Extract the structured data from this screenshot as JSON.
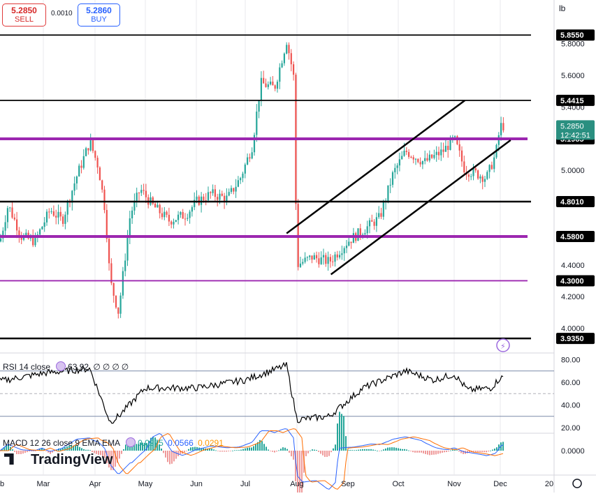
{
  "trade": {
    "sell_price": "5.2850",
    "sell_label": "SELL",
    "spread": "0.0010",
    "buy_price": "5.2860",
    "buy_label": "BUY"
  },
  "price_scale": {
    "units": "lb",
    "ticks": [
      "5.8000",
      "5.6000",
      "5.4000",
      "5.2000",
      "5.0000",
      "4.8000",
      "4.6000",
      "4.4000",
      "4.2000",
      "4.0000"
    ]
  },
  "levels": [
    {
      "value": "5.8550",
      "color": "#000000",
      "width": "thin"
    },
    {
      "value": "5.4415",
      "color": "#000000",
      "width": "thin"
    },
    {
      "value": "5.1985",
      "color": "#9c27b0",
      "width": "thick"
    },
    {
      "value": "4.8010",
      "color": "#000000",
      "width": "thick"
    },
    {
      "value": "4.5800",
      "color": "#9c27b0",
      "width": "thick"
    },
    {
      "value": "4.3000",
      "color": "#9c27b0",
      "width": "thin"
    },
    {
      "value": "3.9350",
      "color": "#000000",
      "width": "thick"
    }
  ],
  "last_price": {
    "value": "5.2850",
    "countdown": "12:42:51",
    "color": "#2a8f80"
  },
  "channel_lines": [
    {
      "from": [
        "Jul 25",
        4.6
      ],
      "to": [
        "Nov 8",
        5.4415
      ]
    },
    {
      "from": [
        "Aug 21",
        4.34
      ],
      "to": [
        "Dec 7",
        5.19
      ]
    }
  ],
  "time_axis": [
    "b",
    "Mar",
    "Apr",
    "May",
    "Jun",
    "Jul",
    "Aug",
    "Sep",
    "Oct",
    "Nov",
    "Dec",
    "20"
  ],
  "rsi": {
    "label": "RSI 14 close",
    "value": "63.92",
    "extra": [
      "∅",
      "∅",
      "∅",
      "∅"
    ],
    "ticks": [
      "80.00",
      "60.00",
      "40.00",
      "20.00"
    ],
    "bands": [
      70,
      50,
      30
    ]
  },
  "macd": {
    "label": "MACD 12 26 close 9 EMA EMA",
    "histogram": "0.0275",
    "macd": "0.0566",
    "signal": "0.0291",
    "ticks": [
      "0.0000"
    ],
    "colors": {
      "histogram": "#26a69a",
      "macd": "#2962ff",
      "signal": "#ff6d00"
    }
  },
  "branding": {
    "logo_text": "TradingView"
  },
  "chart_data": [
    {
      "type": "candlestick",
      "title": "",
      "ylabel": "",
      "ylim": [
        3.93,
        5.93
      ],
      "x_range": [
        "Feb",
        "Dec 25"
      ],
      "y_scale": "linear",
      "grid": true,
      "series": [
        {
          "values": []
        }
      ],
      "approx_path": [
        [
          "Feb 1",
          4.35
        ],
        [
          "Feb 10",
          4.78
        ],
        [
          "Feb 18",
          4.58
        ],
        [
          "Feb 26",
          4.55
        ],
        [
          "Mar 5",
          4.75
        ],
        [
          "Mar 12",
          4.68
        ],
        [
          "Mar 20",
          4.95
        ],
        [
          "Mar 28",
          5.18
        ],
        [
          "Apr 3",
          5.02
        ],
        [
          "Apr 7",
          4.75
        ],
        [
          "Apr 10",
          4.3
        ],
        [
          "Apr 15",
          4.1
        ],
        [
          "Apr 22",
          4.72
        ],
        [
          "Apr 28",
          4.88
        ],
        [
          "May 5",
          4.78
        ],
        [
          "May 15",
          4.68
        ],
        [
          "May 25",
          4.72
        ],
        [
          "Jun 1",
          4.8
        ],
        [
          "Jun 10",
          4.85
        ],
        [
          "Jun 20",
          4.82
        ],
        [
          "Jun 28",
          4.95
        ],
        [
          "Jul 5",
          5.15
        ],
        [
          "Jul 10",
          5.55
        ],
        [
          "Jul 18",
          5.52
        ],
        [
          "Jul 25",
          5.82
        ],
        [
          "Jul 29",
          5.6
        ],
        [
          "Aug 1",
          4.4
        ],
        [
          "Aug 10",
          4.45
        ],
        [
          "Aug 20",
          4.42
        ],
        [
          "Sep 1",
          4.55
        ],
        [
          "Sep 10",
          4.62
        ],
        [
          "Sep 20",
          4.7
        ],
        [
          "Sep 28",
          4.98
        ],
        [
          "Oct 5",
          5.12
        ],
        [
          "Oct 15",
          5.05
        ],
        [
          "Oct 25",
          5.12
        ],
        [
          "Nov 1",
          5.2
        ],
        [
          "Nov 8",
          5.0
        ],
        [
          "Nov 15",
          4.98
        ],
        [
          "Nov 22",
          4.95
        ],
        [
          "Nov 28",
          5.1
        ],
        [
          "Dec 1",
          5.28
        ]
      ]
    },
    {
      "type": "line",
      "title": "",
      "ylim": [
        15,
        85
      ],
      "ylabel": "",
      "series": [
        {
          "values": []
        }
      ],
      "approx_path": [
        [
          "Feb 1",
          60
        ],
        [
          "Mar 1",
          68
        ],
        [
          "Mar 28",
          72
        ],
        [
          "Apr 10",
          25
        ],
        [
          "Apr 15",
          30
        ],
        [
          "May 1",
          55
        ],
        [
          "Jun 1",
          55
        ],
        [
          "Jul 1",
          62
        ],
        [
          "Jul 25",
          75
        ],
        [
          "Aug 1",
          27
        ],
        [
          "Aug 20",
          30
        ],
        [
          "Sep 10",
          55
        ],
        [
          "Oct 5",
          70
        ],
        [
          "Oct 20",
          62
        ],
        [
          "Nov 1",
          67
        ],
        [
          "Nov 10",
          53
        ],
        [
          "Nov 25",
          55
        ],
        [
          "Dec 1",
          64
        ]
      ]
    },
    {
      "type": "histogram+line",
      "title": "",
      "ylabel": "",
      "series": [
        {
          "name": "MACD",
          "value": 0.0566
        },
        {
          "name": "Signal",
          "value": 0.0291
        },
        {
          "name": "Histogram",
          "value": 0.0275
        }
      ]
    }
  ]
}
